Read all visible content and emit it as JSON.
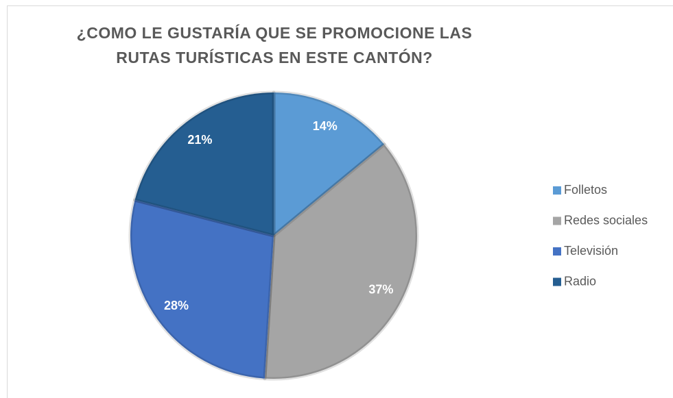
{
  "chart_data": {
    "type": "pie",
    "title": "¿COMO LE GUSTARÍA QUE SE PROMOCIONE LAS RUTAS TURÍSTICAS EN ESTE CANTÓN?",
    "categories": [
      "Folletos",
      "Redes sociales",
      "Televisión",
      "Radio"
    ],
    "values": [
      14,
      37,
      28,
      21
    ],
    "value_labels": [
      "14%",
      "37%",
      "28%",
      "21%"
    ],
    "colors": [
      "#5b9bd5",
      "#a5a5a5",
      "#4472c4",
      "#255e91"
    ],
    "legend": "right"
  }
}
